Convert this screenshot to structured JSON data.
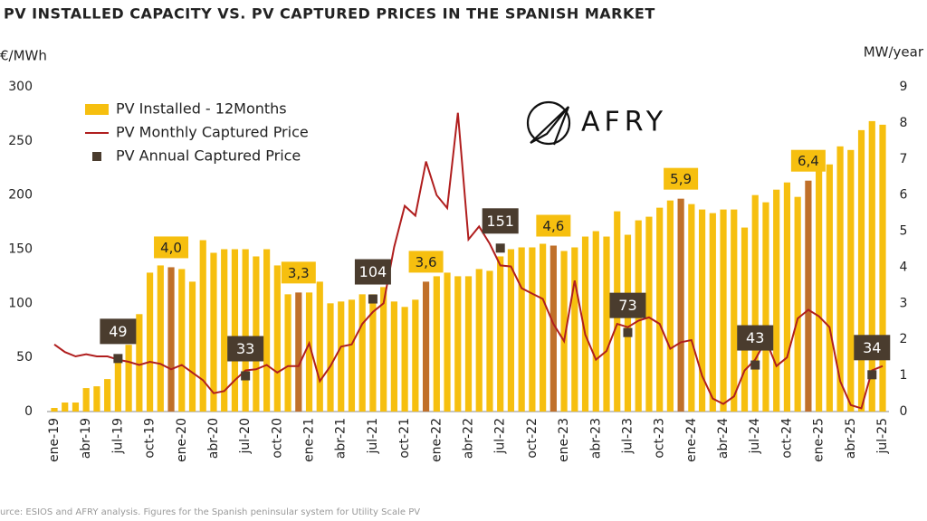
{
  "chart_data": {
    "type": "bar-line",
    "title": "PV INSTALLED CAPACITY VS. PV CAPTURED PRICES IN THE SPANISH MARKET",
    "y_label": "€/MWh",
    "y2_label": "MW/year",
    "source": "urce: ESIOS and AFRY analysis. Figures for the Spanish peninsular system for Utility Scale PV",
    "logo": "AFRY",
    "categories": [
      "ene-19",
      null,
      null,
      "abr-19",
      null,
      null,
      "jul-19",
      null,
      null,
      "oct-19",
      null,
      null,
      "ene-20",
      null,
      null,
      "abr-20",
      null,
      null,
      "jul-20",
      null,
      null,
      "oct-20",
      null,
      null,
      "ene-21",
      null,
      null,
      "abr-21",
      null,
      null,
      "jul-21",
      null,
      null,
      "oct-21",
      null,
      null,
      "ene-22",
      null,
      null,
      "abr-22",
      null,
      null,
      "jul-22",
      null,
      null,
      "oct-22",
      null,
      null,
      "ene-23",
      null,
      null,
      "abr-23",
      null,
      null,
      "jul-23",
      null,
      null,
      "oct-23",
      null,
      null,
      "ene-24",
      null,
      null,
      "abr-24",
      null,
      null,
      "jul-24",
      null,
      null,
      "oct-24",
      null,
      null,
      "ene-25",
      null,
      null,
      "abr-25",
      null,
      null,
      "jul-25"
    ],
    "ylim": [
      0,
      300
    ],
    "yticks": [
      0,
      50,
      100,
      150,
      200,
      250,
      300
    ],
    "y2lim": [
      0,
      9
    ],
    "y2ticks": [
      0,
      1,
      2,
      3,
      4,
      5,
      6,
      7,
      8,
      9
    ],
    "series": [
      {
        "name": "PV Installed - 12Months",
        "type": "bar",
        "axis": "y2",
        "color": "#f6bf0f",
        "highlight_color": "#c0702a",
        "values": [
          0.1,
          0.25,
          0.25,
          0.65,
          0.7,
          0.9,
          1.5,
          1.85,
          2.7,
          3.85,
          4.05,
          4.0,
          3.95,
          3.6,
          4.75,
          4.4,
          4.5,
          4.5,
          4.5,
          4.3,
          4.5,
          4.05,
          3.25,
          3.3,
          3.3,
          3.6,
          3.0,
          3.05,
          3.1,
          3.25,
          3.25,
          3.45,
          3.05,
          2.9,
          3.1,
          3.6,
          3.75,
          3.85,
          3.75,
          3.75,
          3.95,
          3.9,
          4.3,
          4.5,
          4.55,
          4.55,
          4.65,
          4.6,
          4.45,
          4.55,
          4.85,
          5.0,
          4.85,
          5.55,
          4.9,
          5.3,
          5.4,
          5.65,
          5.85,
          5.9,
          5.75,
          5.6,
          5.5,
          5.6,
          5.6,
          5.1,
          6.0,
          5.8,
          6.15,
          6.35,
          5.95,
          6.4,
          7.1,
          6.85,
          7.35,
          7.25,
          7.8,
          8.05,
          7.95
        ],
        "value_labels": [
          null,
          null,
          null,
          null,
          null,
          null,
          null,
          null,
          null,
          null,
          null,
          "4,0",
          null,
          null,
          null,
          null,
          null,
          null,
          null,
          null,
          null,
          null,
          null,
          "3,3",
          null,
          null,
          null,
          null,
          null,
          null,
          null,
          null,
          null,
          null,
          null,
          "3,6",
          null,
          null,
          null,
          null,
          null,
          null,
          null,
          null,
          null,
          null,
          null,
          "4,6",
          null,
          null,
          null,
          null,
          null,
          null,
          null,
          null,
          null,
          null,
          null,
          "5,9",
          null,
          null,
          null,
          null,
          null,
          null,
          null,
          null,
          null,
          null,
          null,
          "6,4",
          null,
          null,
          null,
          null,
          null,
          null,
          null
        ]
      },
      {
        "name": "PV Monthly Captured Price",
        "type": "line",
        "color": "#b01e1e",
        "values": [
          62,
          55,
          51,
          53,
          51,
          51,
          48,
          46,
          43,
          46,
          44,
          39,
          43,
          36,
          29,
          17,
          19,
          29,
          38,
          39,
          43,
          36,
          42,
          42,
          63,
          28,
          42,
          60,
          62,
          81,
          92,
          100,
          152,
          190,
          181,
          231,
          200,
          188,
          276,
          159,
          171,
          155,
          135,
          134,
          114,
          109,
          104,
          81,
          65,
          121,
          71,
          48,
          56,
          81,
          78,
          84,
          87,
          81,
          58,
          64,
          66,
          33,
          12,
          7,
          14,
          38,
          48,
          66,
          42,
          50,
          86,
          94,
          88,
          78,
          28,
          6,
          3,
          38,
          42
        ]
      },
      {
        "name": "PV Annual Captured Price",
        "type": "scatter",
        "color": "#4a3c2e",
        "values": [
          null,
          null,
          null,
          null,
          null,
          null,
          49,
          null,
          null,
          null,
          null,
          null,
          null,
          null,
          null,
          null,
          null,
          null,
          33,
          null,
          null,
          null,
          null,
          null,
          null,
          null,
          null,
          null,
          null,
          null,
          104,
          null,
          null,
          null,
          null,
          null,
          null,
          null,
          null,
          null,
          null,
          null,
          151,
          null,
          null,
          null,
          null,
          null,
          null,
          null,
          null,
          null,
          null,
          null,
          73,
          null,
          null,
          null,
          null,
          null,
          null,
          null,
          null,
          null,
          null,
          null,
          43,
          null,
          null,
          null,
          null,
          null,
          null,
          null,
          null,
          null,
          null,
          34,
          null
        ]
      }
    ]
  }
}
